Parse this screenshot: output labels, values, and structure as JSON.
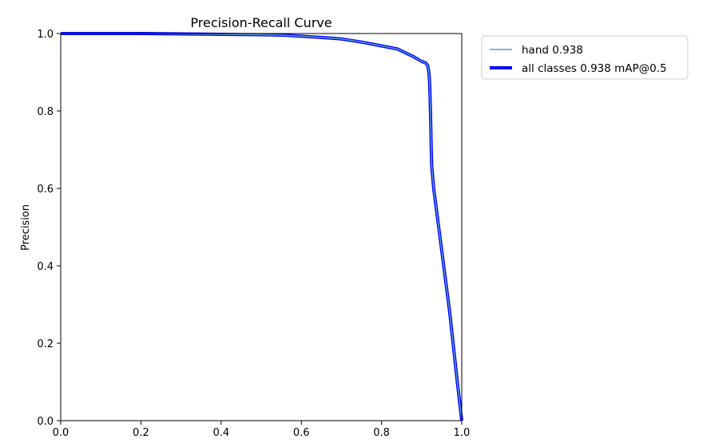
{
  "chart_data": {
    "type": "line",
    "title": "Precision-Recall Curve",
    "xlabel": "",
    "ylabel": "Precision",
    "xlim": [
      0,
      1
    ],
    "ylim": [
      0,
      1
    ],
    "grid": false,
    "legend_position": "outside upper right",
    "xticks": [
      "0.0",
      "0.2",
      "0.4",
      "0.6",
      "0.8",
      "1.0"
    ],
    "yticks": [
      "0.0",
      "0.2",
      "0.4",
      "0.6",
      "0.8",
      "1.0"
    ],
    "xtick_values": [
      0,
      0.2,
      0.4,
      0.6,
      0.8,
      1.0
    ],
    "ytick_values": [
      0,
      0.2,
      0.4,
      0.6,
      0.8,
      1.0
    ],
    "series": [
      {
        "name": "hand 0.938",
        "color": "#5a9bd5",
        "x": [
          0,
          0.1,
          0.2,
          0.3,
          0.4,
          0.5,
          0.55,
          0.6,
          0.65,
          0.7,
          0.75,
          0.8,
          0.84,
          0.86,
          0.88,
          0.9,
          0.91,
          0.915,
          0.918,
          0.92,
          0.922,
          0.924,
          0.925,
          0.93,
          0.95,
          0.97,
          0.99,
          1.0
        ],
        "y": [
          1.0,
          1.0,
          1.0,
          0.999,
          0.998,
          0.997,
          0.996,
          0.993,
          0.99,
          0.986,
          0.978,
          0.968,
          0.96,
          0.95,
          0.94,
          0.928,
          0.924,
          0.918,
          0.9,
          0.87,
          0.8,
          0.7,
          0.66,
          0.6,
          0.44,
          0.28,
          0.09,
          0.0
        ]
      },
      {
        "name": "all classes 0.938 mAP@0.5",
        "color": "#0000ff",
        "x": [
          0,
          0.1,
          0.2,
          0.3,
          0.4,
          0.5,
          0.55,
          0.6,
          0.65,
          0.7,
          0.75,
          0.8,
          0.84,
          0.86,
          0.88,
          0.9,
          0.91,
          0.915,
          0.918,
          0.92,
          0.922,
          0.924,
          0.925,
          0.93,
          0.95,
          0.97,
          0.99,
          1.0
        ],
        "y": [
          1.0,
          1.0,
          1.0,
          0.999,
          0.998,
          0.997,
          0.996,
          0.993,
          0.99,
          0.986,
          0.978,
          0.968,
          0.96,
          0.95,
          0.94,
          0.928,
          0.924,
          0.918,
          0.9,
          0.87,
          0.8,
          0.7,
          0.66,
          0.6,
          0.44,
          0.28,
          0.09,
          0.0
        ]
      }
    ]
  }
}
